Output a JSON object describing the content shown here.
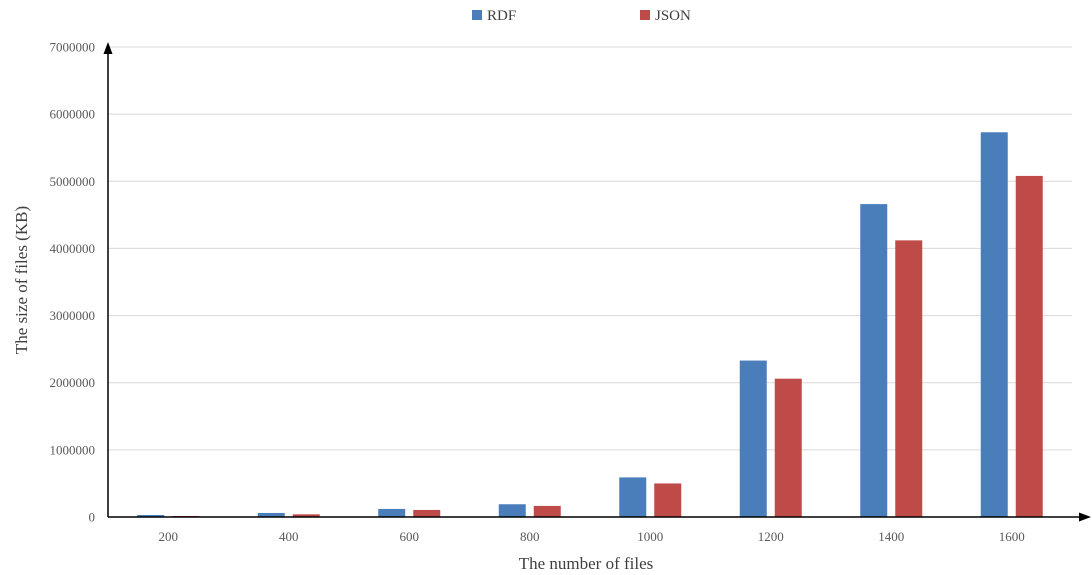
{
  "chart_data": {
    "type": "bar",
    "categories": [
      "200",
      "400",
      "600",
      "800",
      "1000",
      "1200",
      "1400",
      "1600"
    ],
    "series": [
      {
        "name": "RDF",
        "color": "#4a7ebb",
        "values": [
          30000,
          60000,
          120000,
          190000,
          590000,
          2330000,
          4660000,
          5730000
        ]
      },
      {
        "name": "JSON",
        "color": "#be4b48",
        "values": [
          15000,
          40000,
          105000,
          165000,
          500000,
          2060000,
          4120000,
          5080000
        ]
      }
    ],
    "xlabel": "The number of files",
    "ylabel": "The size of files (KB)",
    "ylim": [
      0,
      7000000
    ],
    "yticks": [
      "0",
      "1000000",
      "2000000",
      "3000000",
      "4000000",
      "5000000",
      "6000000",
      "7000000"
    ],
    "grid": true,
    "legend": "top-center"
  }
}
